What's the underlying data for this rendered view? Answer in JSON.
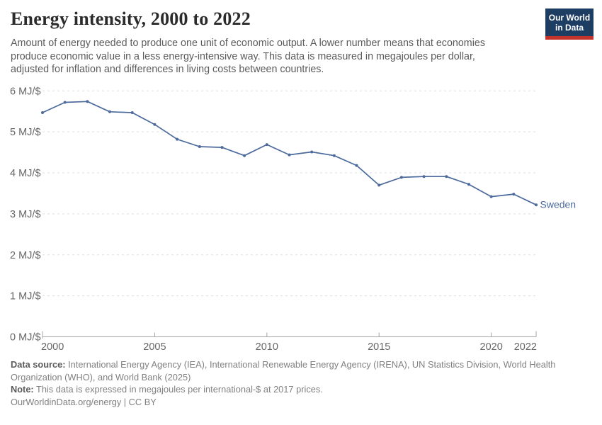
{
  "header": {
    "title": "Energy intensity, 2000 to 2022",
    "subtitle": "Amount of energy needed to produce one unit of economic output. A lower number means that economies produce economic value in a less energy-intensive way. This data is measured in megajoules per dollar, adjusted for inflation and differences in living costs between countries.",
    "logo": {
      "line1": "Our World",
      "line2": "in Data",
      "bg_color": "#1d3d63",
      "accent_color": "#c4342b"
    }
  },
  "chart_data": {
    "type": "line",
    "title": "Energy intensity, 2000 to 2022",
    "xlabel": "",
    "ylabel": "",
    "unit": "MJ/$",
    "xlim": [
      2000,
      2022
    ],
    "ylim": [
      0,
      6
    ],
    "x_ticks": [
      2000,
      2005,
      2010,
      2015,
      2020,
      2022
    ],
    "y_ticks": [
      0,
      1,
      2,
      3,
      4,
      5,
      6
    ],
    "y_tick_suffix": " MJ/$",
    "grid": "horizontal-dashed",
    "legend_position": "end-of-line",
    "series": [
      {
        "name": "Sweden",
        "color": "#4C6A9C",
        "x": [
          2000,
          2001,
          2002,
          2003,
          2004,
          2005,
          2006,
          2007,
          2008,
          2009,
          2010,
          2011,
          2012,
          2013,
          2014,
          2015,
          2016,
          2017,
          2018,
          2019,
          2020,
          2021,
          2022
        ],
        "values": [
          5.47,
          5.72,
          5.74,
          5.49,
          5.47,
          5.18,
          4.82,
          4.64,
          4.62,
          4.42,
          4.69,
          4.44,
          4.51,
          4.42,
          4.18,
          3.7,
          3.89,
          3.91,
          3.91,
          3.72,
          3.42,
          3.48,
          3.22
        ]
      }
    ],
    "colors": {
      "gridline": "#dedede",
      "axis": "#a5a5a5",
      "tick_label": "#666666"
    }
  },
  "footer": {
    "source_label": "Data source:",
    "source_text": "International Energy Agency (IEA), International Renewable Energy Agency (IRENA), UN Statistics Division, World Health Organization (WHO), and World Bank (2025)",
    "note_label": "Note:",
    "note_text": "This data is expressed in megajoules per international-$ at 2017 prices.",
    "citation": "OurWorldinData.org/energy | CC BY"
  }
}
